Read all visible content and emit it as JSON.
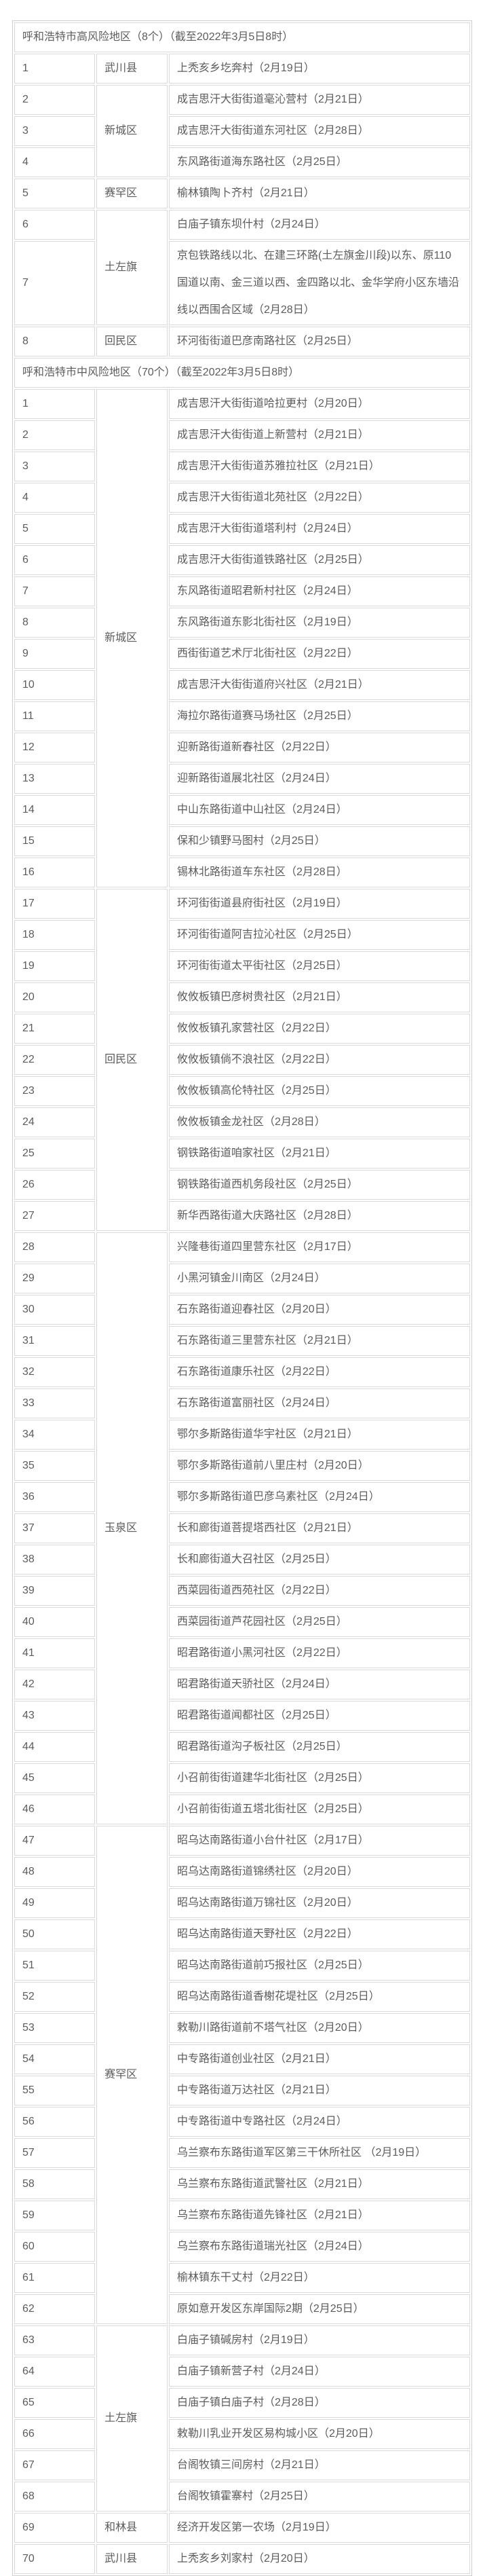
{
  "meta": {
    "page_background": "#ffffff",
    "table_border_color": "#d9d9d9",
    "text_color": "#5c5c5c",
    "columns": [
      "序号",
      "区县",
      "地区（划定日期）"
    ]
  },
  "sections": [
    {
      "title": "呼和浩特市高风险地区（8个）（截至2022年3月5日8时）",
      "groups": [
        {
          "district": "武川县",
          "items": [
            {
              "no": "1",
              "area": "上秃亥乡圪奔村（2月19日）"
            }
          ]
        },
        {
          "district": "新城区",
          "items": [
            {
              "no": "2",
              "area": "成吉思汗大街街道毫沁营村（2月21日）"
            },
            {
              "no": "3",
              "area": "成吉思汗大街街道东河社区（2月28日）"
            },
            {
              "no": "4",
              "area": "东风路街道海东路社区（2月25日）"
            }
          ]
        },
        {
          "district": "赛罕区",
          "items": [
            {
              "no": "5",
              "area": "榆林镇陶卜齐村（2月21日）"
            }
          ]
        },
        {
          "district": "土左旗",
          "items": [
            {
              "no": "6",
              "area": "白庙子镇东坝什村（2月24日）"
            },
            {
              "no": "7",
              "area": "京包铁路线以北、在建三环路(土左旗金川段)以东、原110国道以南、金三道以西、金四路以北、金华学府小区东墙沿线以西围合区域（2月28日）"
            }
          ]
        },
        {
          "district": "回民区",
          "items": [
            {
              "no": "8",
              "area": "环河街街道巴彦南路社区（2月25日）"
            }
          ]
        }
      ]
    },
    {
      "title": "呼和浩特市中风险地区（70个）（截至2022年3月5日8时）",
      "groups": [
        {
          "district": "新城区",
          "items": [
            {
              "no": "1",
              "area": "成吉思汗大街街道哈拉更村（2月20日）"
            },
            {
              "no": "2",
              "area": "成吉思汗大街街道上新营村（2月21日）"
            },
            {
              "no": "3",
              "area": "成吉思汗大街街道苏雅拉社区（2月21日）"
            },
            {
              "no": "4",
              "area": "成吉思汗大街街道北苑社区（2月22日）"
            },
            {
              "no": "5",
              "area": "成吉思汗大街街道塔利村（2月24日）"
            },
            {
              "no": "6",
              "area": "成吉思汗大街街道铁路社区（2月25日）"
            },
            {
              "no": "7",
              "area": "东风路街道昭君新村社区（2月24日）"
            },
            {
              "no": "8",
              "area": "东风路街道东影北街社区（2月19日）"
            },
            {
              "no": "9",
              "area": "西街街道艺术厅北街社区（2月22日）"
            },
            {
              "no": "10",
              "area": "成吉思汗大街街道府兴社区（2月21日）"
            },
            {
              "no": "11",
              "area": "海拉尔路街道赛马场社区（2月25日）"
            },
            {
              "no": "12",
              "area": "迎新路街道新春社区（2月22日）"
            },
            {
              "no": "13",
              "area": "迎新路街道展北社区（2月24日）"
            },
            {
              "no": "14",
              "area": "中山东路街道中山社区（2月24日）"
            },
            {
              "no": "15",
              "area": "保和少镇野马图村（2月25日）"
            },
            {
              "no": "16",
              "area": "锡林北路街道车东社区（2月28日）"
            }
          ]
        },
        {
          "district": "回民区",
          "items": [
            {
              "no": "17",
              "area": "环河街街道县府街社区（2月19日）"
            },
            {
              "no": "18",
              "area": "环河街街道阿吉拉沁社区（2月25日）"
            },
            {
              "no": "19",
              "area": "环河街街道太平街社区（2月25日）"
            },
            {
              "no": "20",
              "area": "攸攸板镇巴彦树贵社区（2月21日）"
            },
            {
              "no": "21",
              "area": "攸攸板镇孔家营社区（2月22日）"
            },
            {
              "no": "22",
              "area": "攸攸板镇倘不浪社区（2月22日）"
            },
            {
              "no": "23",
              "area": "攸攸板镇高伦特社区（2月25日）"
            },
            {
              "no": "24",
              "area": "攸攸板镇金龙社区（2月28日）"
            },
            {
              "no": "25",
              "area": "钢铁路街道咱家社区（2月21日）"
            },
            {
              "no": "26",
              "area": "钢铁路街道西机务段社区（2月25日）"
            },
            {
              "no": "27",
              "area": "新华西路街道大庆路社区（2月28日）"
            }
          ]
        },
        {
          "district": "玉泉区",
          "items": [
            {
              "no": "28",
              "area": "兴隆巷街道四里营东社区（2月17日）"
            },
            {
              "no": "29",
              "area": "小黑河镇金川南区（2月24日）"
            },
            {
              "no": "30",
              "area": "石东路街道迎春社区（2月20日）"
            },
            {
              "no": "31",
              "area": "石东路街道三里营东社区（2月21日）"
            },
            {
              "no": "32",
              "area": "石东路街道康乐社区（2月22日）"
            },
            {
              "no": "33",
              "area": "石东路街道富丽社区（2月24日）"
            },
            {
              "no": "34",
              "area": "鄂尔多斯路街道华宇社区（2月21日）"
            },
            {
              "no": "35",
              "area": "鄂尔多斯路街道前八里庄村（2月20日）"
            },
            {
              "no": "36",
              "area": "鄂尔多斯路街道巴彦乌素社区（2月24日）"
            },
            {
              "no": "37",
              "area": "长和廊街道菩提塔西社区（2月21日）"
            },
            {
              "no": "38",
              "area": "长和廊街道大召社区（2月25日）"
            },
            {
              "no": "39",
              "area": "西菜园街道西苑社区（2月22日）"
            },
            {
              "no": "40",
              "area": "西菜园街道芦花园社区（2月25日）"
            },
            {
              "no": "41",
              "area": "昭君路街道小黑河社区（2月22日）"
            },
            {
              "no": "42",
              "area": "昭君路街道天骄社区（2月24日）"
            },
            {
              "no": "43",
              "area": "昭君路街道闻都社区（2月25日）"
            },
            {
              "no": "44",
              "area": "昭君路街道沟子板社区（2月25日）"
            },
            {
              "no": "45",
              "area": "小召前街街道建华北街社区（2月25日）"
            },
            {
              "no": "46",
              "area": "小召前街街道五塔北街社区（2月25日）"
            }
          ]
        },
        {
          "district": "赛罕区",
          "items": [
            {
              "no": "47",
              "area": "昭乌达南路街道小台什社区（2月17日）"
            },
            {
              "no": "48",
              "area": "昭乌达南路街道锦绣社区（2月20日）"
            },
            {
              "no": "49",
              "area": "昭乌达南路街道万锦社区（2月20日）"
            },
            {
              "no": "50",
              "area": "昭乌达南路街道天野社区（2月22日）"
            },
            {
              "no": "51",
              "area": "昭乌达南路街道前巧报社区（2月25日）"
            },
            {
              "no": "52",
              "area": "昭乌达南路街道香榭花堤社区（2月25日）"
            },
            {
              "no": "53",
              "area": "敕勒川路街道前不塔气社区（2月20日）"
            },
            {
              "no": "54",
              "area": "中专路街道创业社区（2月21日）"
            },
            {
              "no": "55",
              "area": "中专路街道万达社区（2月21日）"
            },
            {
              "no": "56",
              "area": "中专路街道中专路社区（2月24日）"
            },
            {
              "no": "57",
              "area": "乌兰察布东路街道军区第三干休所社区 （2月19日）"
            },
            {
              "no": "58",
              "area": "乌兰察布东路街道武警社区（2月21日）"
            },
            {
              "no": "59",
              "area": "乌兰察布东路街道先锋社区（2月21日）"
            },
            {
              "no": "60",
              "area": "乌兰察布东路街道瑞光社区（2月24日）"
            },
            {
              "no": "61",
              "area": "榆林镇东干丈村（2月22日）"
            },
            {
              "no": "62",
              "area": "原如意开发区东岸国际2期（2月25日）"
            }
          ]
        },
        {
          "district": "土左旗",
          "items": [
            {
              "no": "63",
              "area": "白庙子镇碱房村（2月19日）"
            },
            {
              "no": "64",
              "area": "白庙子镇新营子村（2月24日）"
            },
            {
              "no": "65",
              "area": "白庙子镇白庙子村（2月28日）"
            },
            {
              "no": "66",
              "area": "敕勒川乳业开发区易构城小区（2月20日）"
            },
            {
              "no": "67",
              "area": "台阁牧镇三间房村（2月21日）"
            },
            {
              "no": "68",
              "area": "台阁牧镇霍寨村（2月25日）"
            }
          ]
        },
        {
          "district": "和林县",
          "items": [
            {
              "no": "69",
              "area": "经济开发区第一农场（2月19日）"
            }
          ]
        },
        {
          "district": "武川县",
          "items": [
            {
              "no": "70",
              "area": "上秃亥乡刘家村（2月20日）"
            }
          ]
        }
      ]
    }
  ]
}
